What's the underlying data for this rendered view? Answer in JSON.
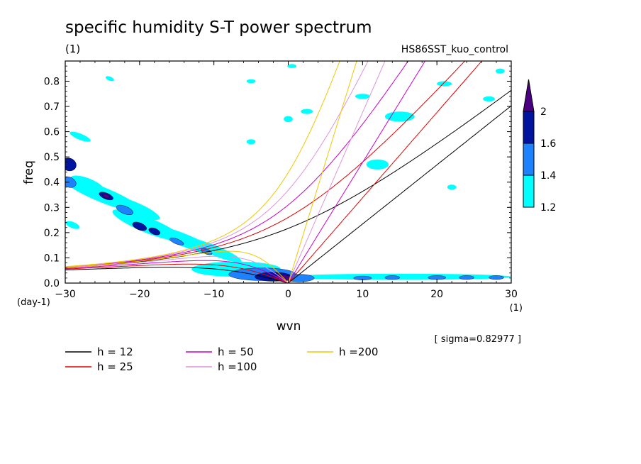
{
  "chart_data": {
    "type": "heatmap",
    "title": "specific humidity S-T power spectrum",
    "subtitle_left": "(1)",
    "subtitle_right": "HS86SST_kuo_control",
    "xlabel": "wvn",
    "ylabel": "freq",
    "x_unit": "(1)",
    "y_unit": "(day-1)",
    "xlim": [
      -30,
      30
    ],
    "ylim": [
      0,
      0.88
    ],
    "xticks": [
      -30,
      -20,
      -10,
      0,
      10,
      20,
      30
    ],
    "xtick_labels": [
      "−30",
      "−20",
      "−10",
      "0",
      "10",
      "20",
      "30"
    ],
    "yticks": [
      0,
      0.1,
      0.2,
      0.3,
      0.4,
      0.5,
      0.6,
      0.7,
      0.8
    ],
    "ytick_labels": [
      "0.0",
      "0.1",
      "0.2",
      "0.3",
      "0.4",
      "0.5",
      "0.6",
      "0.7",
      "0.8"
    ],
    "sigma_text": "[ sigma=0.82977 ]",
    "colorbar": {
      "levels": [
        1.2,
        1.4,
        1.6,
        2
      ],
      "level_labels": [
        "1.2",
        "1.4",
        "1.6",
        "2"
      ],
      "colors": [
        "#00ffff",
        "#1e82ff",
        "#0014a0",
        "#4b0082"
      ]
    },
    "dispersion_curves": [
      {
        "label": "h = 12",
        "h": 12,
        "color": "#000000"
      },
      {
        "label": "h = 25",
        "h": 25,
        "color": "#e00000"
      },
      {
        "label": "h = 50",
        "h": 50,
        "color": "#c800c8"
      },
      {
        "label": "h =100",
        "h": 100,
        "color": "#dc96dc"
      },
      {
        "label": "h =200",
        "h": 200,
        "color": "#f0c800"
      }
    ],
    "spectral_blobs": [
      {
        "x": -29.5,
        "y": 0.47,
        "rx": 1.0,
        "ry": 0.025,
        "level": 2
      },
      {
        "x": -29.5,
        "y": 0.4,
        "rx": 1.0,
        "ry": 0.02,
        "level": 1
      },
      {
        "x": -25,
        "y": 0.35,
        "rx": 5.5,
        "ry": 0.03,
        "level": 0
      },
      {
        "x": -24.5,
        "y": 0.345,
        "rx": 1.0,
        "ry": 0.012,
        "level": 2
      },
      {
        "x": -24.5,
        "y": 0.345,
        "rx": 0.5,
        "ry": 0.008,
        "level": 3
      },
      {
        "x": -21,
        "y": 0.3,
        "rx": 4.0,
        "ry": 0.025,
        "level": 0
      },
      {
        "x": -22.0,
        "y": 0.29,
        "rx": 1.2,
        "ry": 0.015,
        "level": 1
      },
      {
        "x": -19,
        "y": 0.23,
        "rx": 5.0,
        "ry": 0.03,
        "level": 0
      },
      {
        "x": -20.0,
        "y": 0.225,
        "rx": 1.0,
        "ry": 0.014,
        "level": 2
      },
      {
        "x": -18.0,
        "y": 0.205,
        "rx": 0.8,
        "ry": 0.012,
        "level": 2
      },
      {
        "x": -14,
        "y": 0.17,
        "rx": 5.0,
        "ry": 0.025,
        "level": 0
      },
      {
        "x": -15.0,
        "y": 0.165,
        "rx": 1.0,
        "ry": 0.01,
        "level": 1
      },
      {
        "x": -10,
        "y": 0.13,
        "rx": 4.0,
        "ry": 0.02,
        "level": 0
      },
      {
        "x": -11.0,
        "y": 0.125,
        "rx": 0.8,
        "ry": 0.01,
        "level": 1
      },
      {
        "x": -27,
        "y": 0.39,
        "rx": 2.5,
        "ry": 0.025,
        "level": 0
      },
      {
        "x": -28,
        "y": 0.58,
        "rx": 1.5,
        "ry": 0.012,
        "level": 0
      },
      {
        "x": -29,
        "y": 0.23,
        "rx": 1.0,
        "ry": 0.012,
        "level": 0
      },
      {
        "x": -7,
        "y": 0.055,
        "rx": 6.0,
        "ry": 0.03,
        "level": 0
      },
      {
        "x": -3.5,
        "y": 0.035,
        "rx": 4.5,
        "ry": 0.025,
        "level": 1
      },
      {
        "x": -2.0,
        "y": 0.025,
        "rx": 2.5,
        "ry": 0.018,
        "level": 2
      },
      {
        "x": -0.8,
        "y": 0.02,
        "rx": 1.2,
        "ry": 0.012,
        "level": 3
      },
      {
        "x": 1.5,
        "y": 0.02,
        "rx": 2.0,
        "ry": 0.015,
        "level": 1
      },
      {
        "x": 15,
        "y": 0.025,
        "rx": 15,
        "ry": 0.012,
        "level": 0
      },
      {
        "x": 10,
        "y": 0.02,
        "rx": 1.2,
        "ry": 0.008,
        "level": 1
      },
      {
        "x": 14,
        "y": 0.022,
        "rx": 1.0,
        "ry": 0.008,
        "level": 1
      },
      {
        "x": 20,
        "y": 0.022,
        "rx": 1.2,
        "ry": 0.008,
        "level": 1
      },
      {
        "x": 24,
        "y": 0.022,
        "rx": 1.0,
        "ry": 0.008,
        "level": 1
      },
      {
        "x": 28,
        "y": 0.022,
        "rx": 1.0,
        "ry": 0.008,
        "level": 1
      },
      {
        "x": 0,
        "y": 0.65,
        "rx": 0.6,
        "ry": 0.012,
        "level": 0
      },
      {
        "x": 0.5,
        "y": 0.86,
        "rx": 0.6,
        "ry": 0.008,
        "level": 0
      },
      {
        "x": -5,
        "y": 0.56,
        "rx": 0.6,
        "ry": 0.01,
        "level": 0
      },
      {
        "x": 10,
        "y": 0.74,
        "rx": 1.0,
        "ry": 0.01,
        "level": 0
      },
      {
        "x": 15,
        "y": 0.66,
        "rx": 2.0,
        "ry": 0.02,
        "level": 0
      },
      {
        "x": 12,
        "y": 0.47,
        "rx": 1.5,
        "ry": 0.02,
        "level": 0
      },
      {
        "x": 21,
        "y": 0.79,
        "rx": 1.0,
        "ry": 0.01,
        "level": 0
      },
      {
        "x": 27,
        "y": 0.73,
        "rx": 0.8,
        "ry": 0.01,
        "level": 0
      },
      {
        "x": 22,
        "y": 0.38,
        "rx": 0.6,
        "ry": 0.01,
        "level": 0
      },
      {
        "x": 28.5,
        "y": 0.84,
        "rx": 0.6,
        "ry": 0.01,
        "level": 0
      },
      {
        "x": -24,
        "y": 0.81,
        "rx": 0.6,
        "ry": 0.008,
        "level": 0
      },
      {
        "x": -5,
        "y": 0.8,
        "rx": 0.6,
        "ry": 0.008,
        "level": 0
      },
      {
        "x": 2.5,
        "y": 0.68,
        "rx": 0.8,
        "ry": 0.01,
        "level": 0
      }
    ]
  }
}
